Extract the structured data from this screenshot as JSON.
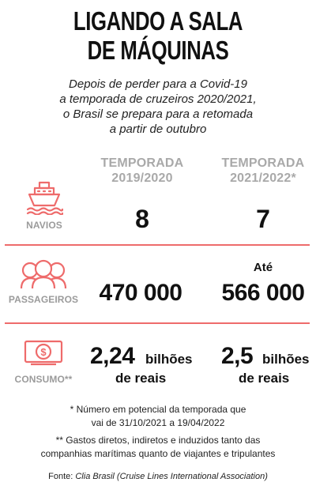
{
  "title": {
    "line1": "LIGANDO A SALA",
    "line2": "DE MÁQUINAS"
  },
  "subtitle": {
    "line1": "Depois de perder para a Covid-19",
    "line2": "a temporada de cruzeiros 2020/2021,",
    "line3": "o Brasil se prepara para a retomada",
    "line4": "a partir de outubro"
  },
  "columns": [
    {
      "label_line1": "TEMPORADA",
      "label_line2": "2019/2020"
    },
    {
      "label_line1": "TEMPORADA",
      "label_line2": "2021/2022*"
    }
  ],
  "rows": {
    "navios": {
      "label": "NAVIOS",
      "icon": "ship-icon",
      "value_2019": "8",
      "value_2021": "7"
    },
    "passageiros": {
      "label": "PASSAGEIROS",
      "icon": "people-icon",
      "value_2019": "470 000",
      "prefix_2021": "Até",
      "value_2021": "566 000"
    },
    "consumo": {
      "label": "CONSUMO**",
      "icon": "money-icon",
      "value_2019": "2,24",
      "unit_2019_a": "bilhões",
      "unit_2019_b": "de reais",
      "value_2021": "2,5",
      "unit_2021_a": "bilhões",
      "unit_2021_b": "de reais"
    }
  },
  "notes": {
    "note1_line1": "* Número em potencial da temporada que",
    "note1_line2": "vai de 31/10/2021 a 19/04/2022",
    "note2_line1": "** Gastos diretos, indiretos e induzidos tanto das",
    "note2_line2": "companhias marítimas quanto de viajantes e tripulantes"
  },
  "source": {
    "prefix": "Fonte: ",
    "text": "Clia Brasil (Cruise Lines International Association)"
  },
  "colors": {
    "accent": "#ee6b6b",
    "label_gray": "#9b9b9b",
    "header_gray": "#a9a9a9",
    "text": "#111111"
  }
}
